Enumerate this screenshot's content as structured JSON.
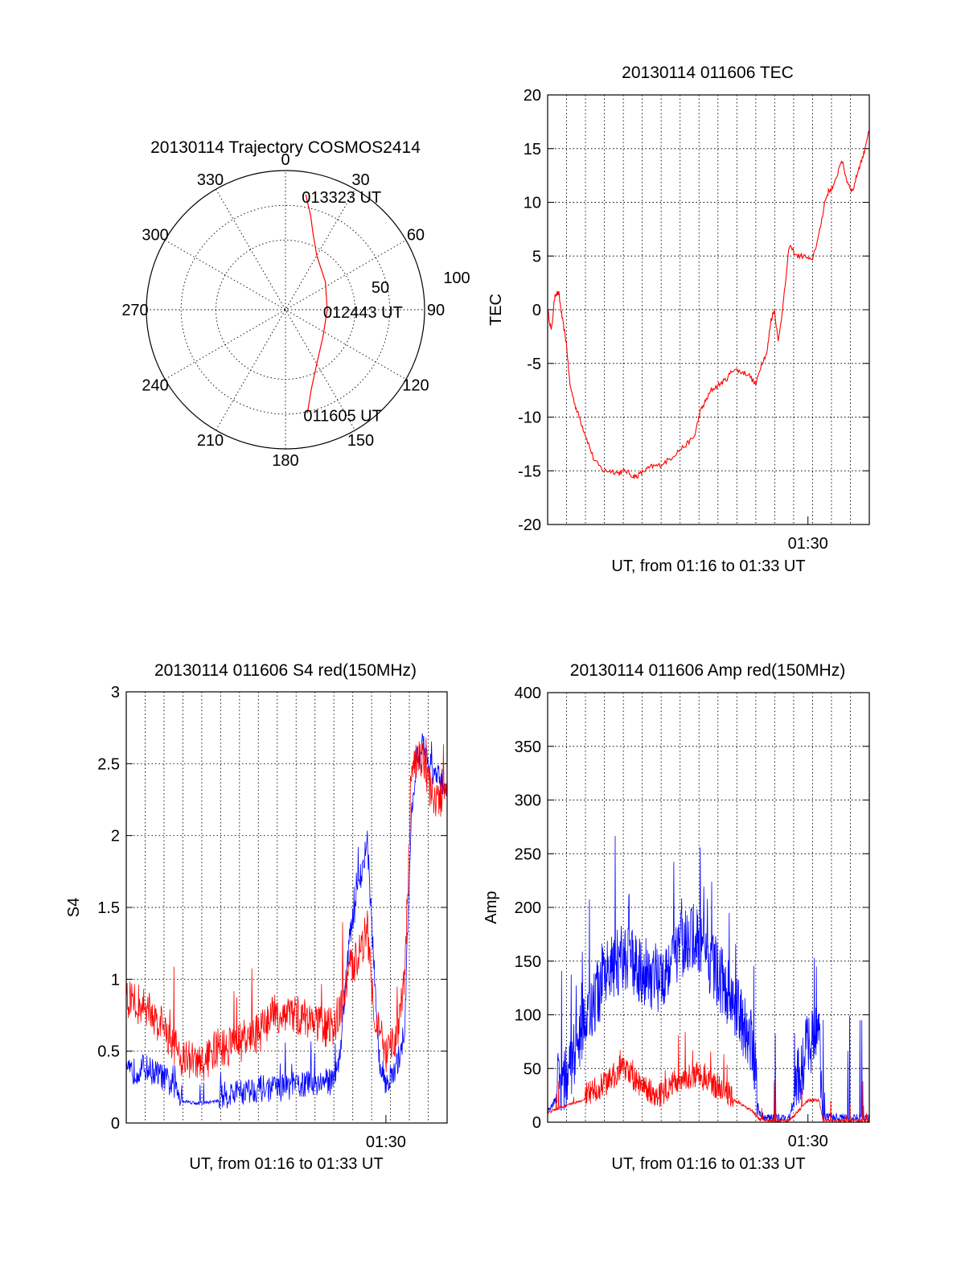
{
  "chart_data": [
    {
      "type": "polar",
      "title": "20130114 Trajectory COSMOS2414",
      "angle_labels": [
        "0",
        "30",
        "60",
        "90",
        "120",
        "150",
        "180",
        "210",
        "240",
        "270",
        "300",
        "330"
      ],
      "radius_labels": [
        "50",
        "100"
      ],
      "trajectory": {
        "color": "#ff0000",
        "points": [
          {
            "az": 10,
            "r": 84
          },
          {
            "az": 15,
            "r": 70
          },
          {
            "az": 20,
            "r": 58
          },
          {
            "az": 30,
            "r": 45
          },
          {
            "az": 55,
            "r": 35
          },
          {
            "az": 90,
            "r": 30
          },
          {
            "az": 125,
            "r": 33
          },
          {
            "az": 150,
            "r": 45
          },
          {
            "az": 162,
            "r": 60
          },
          {
            "az": 168,
            "r": 76
          }
        ],
        "labels": [
          {
            "text": "013323 UT",
            "point": 0
          },
          {
            "text": "012443 UT",
            "point": 5
          },
          {
            "text": "011605 UT",
            "point": 9
          }
        ]
      }
    },
    {
      "type": "line",
      "title": "20130114 011606 TEC",
      "xlabel": "UT, from 01:16 to 01:33 UT",
      "ylabel": "TEC",
      "xlim": [
        0,
        17.3
      ],
      "ylim": [
        -20,
        20
      ],
      "yticks": [
        20,
        15,
        10,
        5,
        0,
        -5,
        -10,
        -15,
        -20
      ],
      "xtick_labels": [
        {
          "x": 14,
          "label": "01:30"
        }
      ],
      "series": [
        {
          "name": "TEC",
          "color": "#ff0000",
          "x": [
            0,
            0.2,
            0.4,
            0.6,
            0.8,
            1.0,
            1.2,
            1.5,
            1.8,
            2.1,
            2.5,
            3.0,
            3.4,
            3.8,
            4.2,
            4.6,
            4.8,
            5.2,
            5.6,
            6.0,
            6.5,
            7.0,
            7.5,
            7.9,
            8.2,
            8.5,
            8.8,
            9.2,
            9.6,
            10.0,
            10.4,
            10.8,
            11.2,
            11.5,
            11.8,
            12.0,
            12.2,
            12.4,
            12.7,
            13.0,
            13.4,
            13.8,
            14.2,
            14.6,
            14.9,
            15.1,
            15.4,
            15.8,
            16.1,
            16.4,
            16.7,
            17.0,
            17.3
          ],
          "values": [
            0,
            -2,
            1.5,
            1.5,
            -1,
            -3,
            -7,
            -9,
            -10.5,
            -12,
            -14,
            -15,
            -15,
            -15.2,
            -15,
            -15.5,
            -15.5,
            -15,
            -14.6,
            -14.5,
            -14,
            -13.2,
            -12.5,
            -11.8,
            -9.5,
            -8.5,
            -7.5,
            -7,
            -6.5,
            -5.5,
            -5.8,
            -6,
            -7,
            -5,
            -4,
            -1,
            0,
            -3,
            1,
            6,
            5,
            5,
            4.5,
            7,
            10,
            11,
            11.5,
            14,
            12,
            11,
            13,
            14.5,
            17
          ]
        }
      ]
    },
    {
      "type": "line",
      "title": "20130114 011606 S4 red(150MHz)",
      "xlabel": "UT, from 01:16 to 01:33 UT",
      "ylabel": "S4",
      "xlim": [
        0,
        17.3
      ],
      "ylim": [
        0,
        3
      ],
      "yticks": [
        "3",
        "2.5",
        "2",
        "1.5",
        "1",
        "0.5",
        "0"
      ],
      "xtick_labels": [
        {
          "x": 14,
          "label": "01:30"
        }
      ],
      "series": [
        {
          "name": "blue",
          "color": "#0000ff",
          "trend": [
            [
              0,
              0.3
            ],
            [
              1,
              0.35
            ],
            [
              2,
              0.28
            ],
            [
              3,
              0.15
            ],
            [
              4,
              0.13
            ],
            [
              5,
              0.15
            ],
            [
              6,
              0.17
            ],
            [
              7,
              0.2
            ],
            [
              8,
              0.2
            ],
            [
              9,
              0.22
            ],
            [
              10,
              0.24
            ],
            [
              11,
              0.25
            ],
            [
              11.5,
              0.4
            ],
            [
              12,
              1.2
            ],
            [
              12.5,
              1.6
            ],
            [
              13,
              1.9
            ],
            [
              13.3,
              1.2
            ],
            [
              13.6,
              0.4
            ],
            [
              14.0,
              0.25
            ],
            [
              14.5,
              0.3
            ],
            [
              15,
              0.6
            ],
            [
              15.4,
              2.2
            ],
            [
              16,
              2.6
            ],
            [
              16.5,
              2.4
            ],
            [
              17.3,
              2.3
            ]
          ],
          "noise": 0.12
        },
        {
          "name": "red",
          "color": "#ff0000",
          "trend": [
            [
              0,
              0.8
            ],
            [
              1,
              0.75
            ],
            [
              2,
              0.6
            ],
            [
              3,
              0.4
            ],
            [
              4,
              0.35
            ],
            [
              5,
              0.45
            ],
            [
              6,
              0.5
            ],
            [
              7,
              0.55
            ],
            [
              8,
              0.7
            ],
            [
              9,
              0.7
            ],
            [
              10,
              0.65
            ],
            [
              11,
              0.6
            ],
            [
              11.5,
              0.7
            ],
            [
              12,
              1.0
            ],
            [
              12.5,
              1.1
            ],
            [
              13,
              1.3
            ],
            [
              13.3,
              0.8
            ],
            [
              13.6,
              0.6
            ],
            [
              14.0,
              0.4
            ],
            [
              14.5,
              0.5
            ],
            [
              15,
              0.9
            ],
            [
              15.4,
              2.4
            ],
            [
              16,
              2.5
            ],
            [
              16.5,
              2.2
            ],
            [
              17.3,
              2.2
            ]
          ],
          "noise": 0.18
        }
      ]
    },
    {
      "type": "line",
      "title": "20130114 011606 Amp red(150MHz)",
      "xlabel": "UT, from 01:16 to 01:33 UT",
      "ylabel": "Amp",
      "xlim": [
        0,
        17.3
      ],
      "ylim": [
        0,
        400
      ],
      "yticks": [
        "400",
        "350",
        "300",
        "250",
        "200",
        "150",
        "100",
        "50",
        "0"
      ],
      "xtick_labels": [
        {
          "x": 14,
          "label": "01:30"
        }
      ],
      "series": [
        {
          "name": "blue",
          "color": "#0000ff",
          "trend": [
            [
              0,
              10
            ],
            [
              1,
              30
            ],
            [
              2,
              80
            ],
            [
              3,
              120
            ],
            [
              4,
              140
            ],
            [
              5,
              130
            ],
            [
              6,
              120
            ],
            [
              7,
              150
            ],
            [
              8,
              160
            ],
            [
              9,
              130
            ],
            [
              10,
              100
            ],
            [
              11,
              60
            ],
            [
              11.4,
              5
            ],
            [
              12,
              2
            ],
            [
              13,
              2
            ],
            [
              13.5,
              30
            ],
            [
              14,
              60
            ],
            [
              14.6,
              70
            ],
            [
              14.8,
              3
            ],
            [
              17.3,
              2
            ]
          ],
          "noise": 40
        },
        {
          "name": "red",
          "color": "#ff0000",
          "trend": [
            [
              0,
              8
            ],
            [
              1,
              15
            ],
            [
              2,
              20
            ],
            [
              3,
              30
            ],
            [
              4,
              45
            ],
            [
              5,
              30
            ],
            [
              6,
              20
            ],
            [
              7,
              35
            ],
            [
              8,
              40
            ],
            [
              9,
              30
            ],
            [
              10,
              20
            ],
            [
              11,
              10
            ],
            [
              11.4,
              2
            ],
            [
              12,
              1
            ],
            [
              13,
              1
            ],
            [
              13.5,
              10
            ],
            [
              14,
              20
            ],
            [
              14.6,
              20
            ],
            [
              14.8,
              1
            ],
            [
              17.3,
              1
            ]
          ],
          "noise": 15
        }
      ]
    }
  ]
}
